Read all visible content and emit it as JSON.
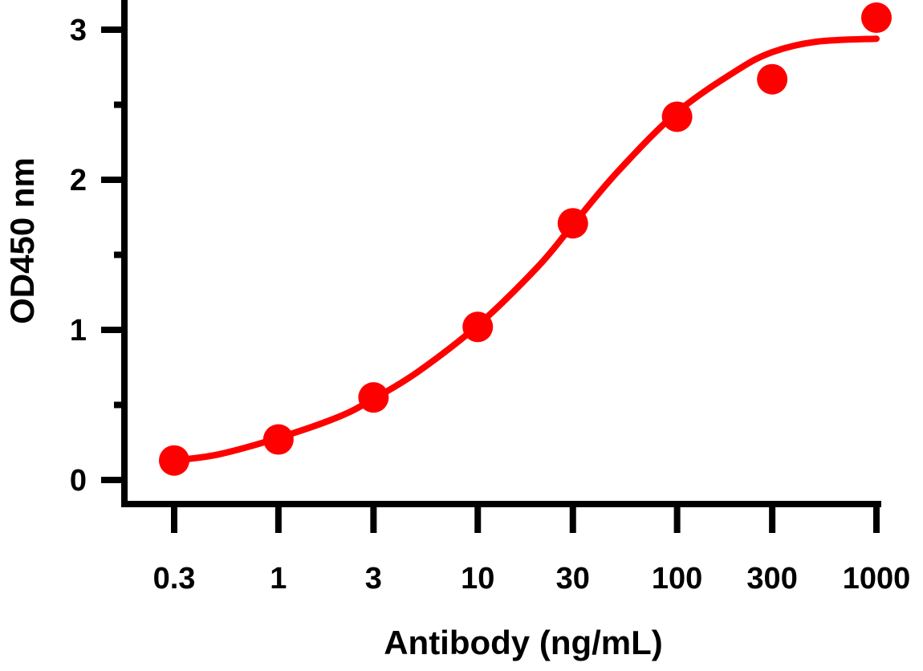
{
  "chart_data": {
    "type": "scatter",
    "title": "",
    "xlabel": "Antibody (ng/mL)",
    "ylabel": "OD450 nm",
    "x_scale": "log",
    "xlim": [
      0.3,
      1000
    ],
    "ylim": [
      0,
      3
    ],
    "x_ticks": [
      {
        "value": 0.3,
        "label": "0.3"
      },
      {
        "value": 1,
        "label": "1"
      },
      {
        "value": 3,
        "label": "3"
      },
      {
        "value": 10,
        "label": "10"
      },
      {
        "value": 30,
        "label": "30"
      },
      {
        "value": 100,
        "label": "100"
      },
      {
        "value": 300,
        "label": "300"
      },
      {
        "value": 1000,
        "label": "1000"
      }
    ],
    "y_ticks": [
      {
        "value": 0,
        "label": "0"
      },
      {
        "value": 1,
        "label": "1"
      },
      {
        "value": 2,
        "label": "2"
      },
      {
        "value": 3,
        "label": "3"
      }
    ],
    "y_minor_ticks": [
      0.5,
      1.5,
      2.5
    ],
    "grid": false,
    "color": "#ff0000",
    "points": [
      {
        "x": 0.3,
        "y": 0.13
      },
      {
        "x": 1,
        "y": 0.27
      },
      {
        "x": 3,
        "y": 0.55
      },
      {
        "x": 10,
        "y": 1.02
      },
      {
        "x": 30,
        "y": 1.71
      },
      {
        "x": 100,
        "y": 2.42
      },
      {
        "x": 300,
        "y": 2.67
      },
      {
        "x": 1000,
        "y": 3.08
      }
    ],
    "fit_curve": [
      {
        "x": 0.3,
        "y": 0.13
      },
      {
        "x": 0.5,
        "y": 0.17
      },
      {
        "x": 1,
        "y": 0.28
      },
      {
        "x": 2,
        "y": 0.42
      },
      {
        "x": 3,
        "y": 0.54
      },
      {
        "x": 5,
        "y": 0.72
      },
      {
        "x": 10,
        "y": 1.03
      },
      {
        "x": 20,
        "y": 1.42
      },
      {
        "x": 30,
        "y": 1.7
      },
      {
        "x": 50,
        "y": 2.05
      },
      {
        "x": 100,
        "y": 2.45
      },
      {
        "x": 200,
        "y": 2.73
      },
      {
        "x": 300,
        "y": 2.85
      },
      {
        "x": 500,
        "y": 2.92
      },
      {
        "x": 1000,
        "y": 2.94
      }
    ]
  }
}
